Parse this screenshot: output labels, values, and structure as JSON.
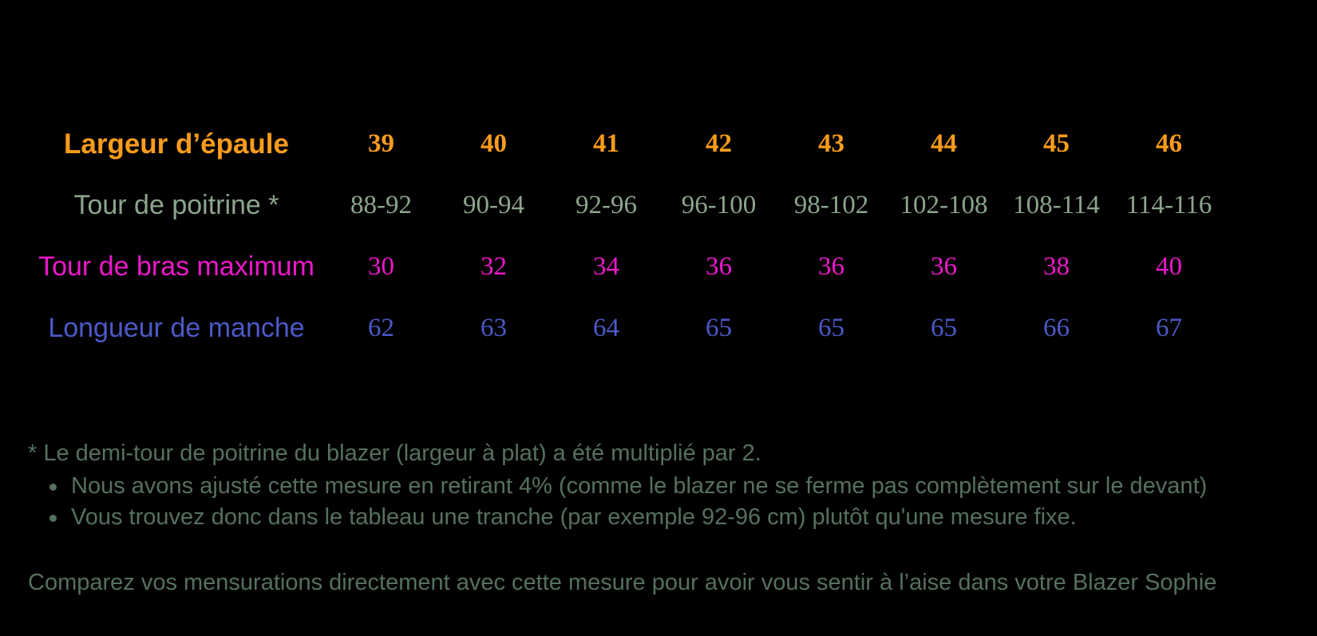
{
  "table": {
    "rows": [
      {
        "id": "largeur-depaule",
        "label": "Largeur d’épaule",
        "values": [
          "39",
          "40",
          "41",
          "42",
          "43",
          "44",
          "45",
          "46"
        ],
        "color": "#F99C1C",
        "bold": true
      },
      {
        "id": "tour-de-poitrine",
        "label": "Tour de poitrine *",
        "values": [
          "88-92",
          "90-94",
          "92-96",
          "96-100",
          "98-102",
          "102-108",
          "108-114",
          "114-116"
        ],
        "color": "#8CA58C",
        "bold": false
      },
      {
        "id": "tour-de-bras-maximum",
        "label": "Tour de bras maximum",
        "values": [
          "30",
          "32",
          "34",
          "36",
          "36",
          "36",
          "38",
          "40"
        ],
        "color": "#EE17CB",
        "bold": false
      },
      {
        "id": "longueur-de-manche",
        "label": "Longueur de manche",
        "values": [
          "62",
          "63",
          "64",
          "65",
          "65",
          "65",
          "66",
          "67"
        ],
        "color": "#4C59C7",
        "bold": false
      }
    ]
  },
  "notes": {
    "footnote": "* Le demi-tour de poitrine du blazer (largeur à plat) a été multiplié par 2.",
    "bullets": [
      "Nous avons ajusté cette mesure en retirant 4% (comme le blazer ne se ferme pas complètement sur le devant)",
      "Vous trouvez donc dans le tableau une tranche (par exemple 92-96 cm) plutôt qu'une mesure fixe."
    ],
    "closing": "Comparez vos mensurations directement avec cette mesure pour avoir vous sentir à l’aise dans votre Blazer Sophie"
  },
  "colors": {
    "background": "#000000",
    "shoulder_orange": "#F99C1C",
    "chest_sage": "#8CA58C",
    "arm_magenta": "#EE17CB",
    "sleeve_blue": "#4C59C7",
    "note_green": "#55705E"
  }
}
